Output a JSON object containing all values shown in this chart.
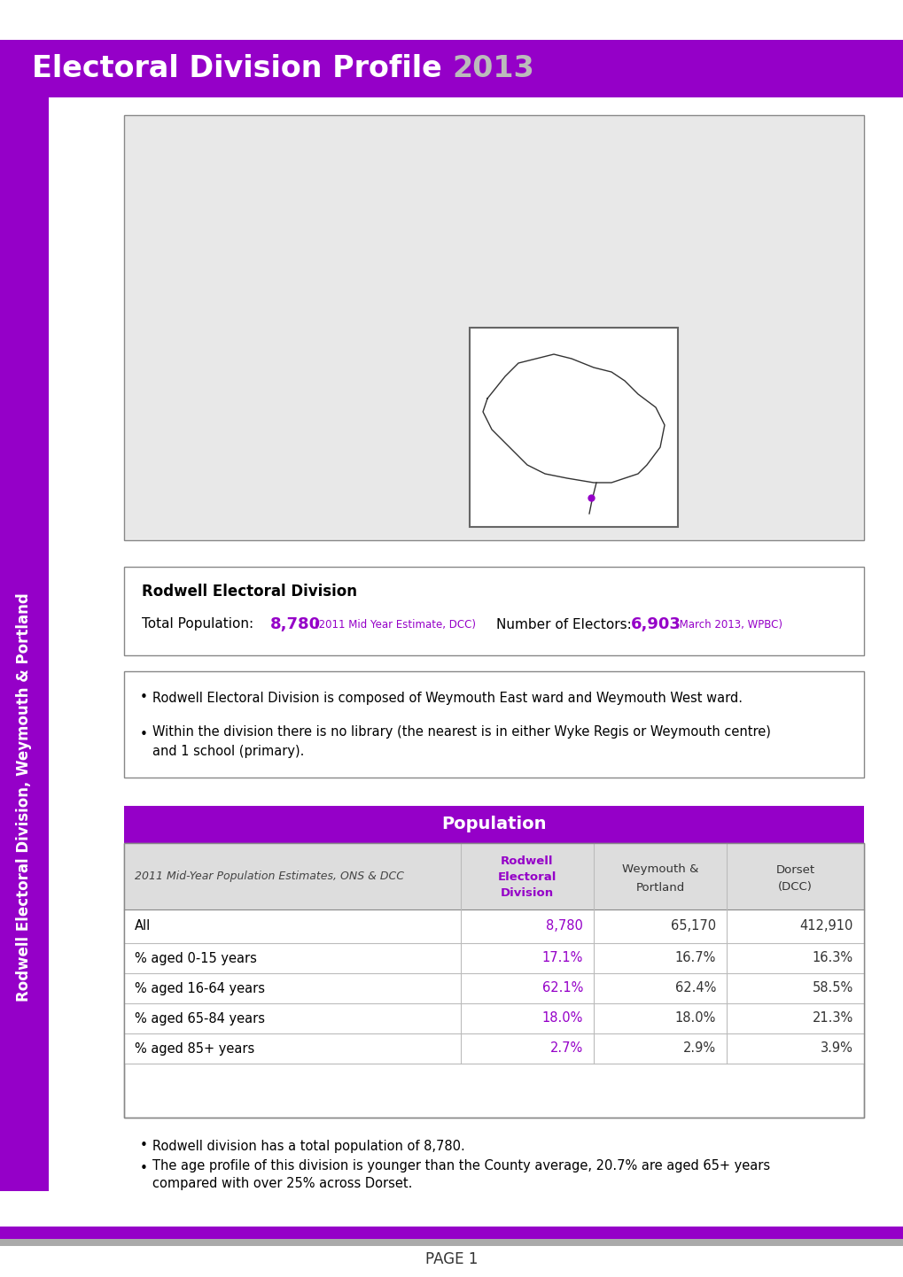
{
  "title_part1": "Electoral Division Profile ",
  "title_part2": "2013",
  "title_bg_color": "#9500C8",
  "title_text_color": "#FFFFFF",
  "title_year_color": "#BBBBBB",
  "sidebar_text": "Rodwell Electoral Division, Weymouth & Portland",
  "sidebar_bg_color": "#9500C8",
  "division_name": "Rodwell Electoral Division",
  "total_pop_label": "Total Population: ",
  "total_pop_value": "8,780",
  "total_pop_note": " (2011 Mid Year Estimate, DCC) ",
  "electors_label": "Number of Electors: ",
  "electors_value": "6,903",
  "electors_note": " (March 2013, WPBC)",
  "purple_color": "#9500C8",
  "bullet1": "Rodwell Electoral Division is composed of Weymouth East ward and Weymouth West ward.",
  "bullet2_line1": "Within the division there is no library (the nearest is in either Wyke Regis or Weymouth centre)",
  "bullet2_line2": "and 1 school (primary).",
  "pop_table_title": "Population",
  "pop_table_header_col1": "2011 Mid-Year Population Estimates, ONS & DCC",
  "pop_table_header_col2_line1": "Rodwell",
  "pop_table_header_col2_line2": "Electoral",
  "pop_table_header_col2_line3": "Division",
  "pop_table_header_col3_line1": "Weymouth &",
  "pop_table_header_col3_line2": "Portland",
  "pop_table_header_col4_line1": "Dorset",
  "pop_table_header_col4_line2": "(DCC)",
  "pop_rows": [
    [
      "All",
      "8,780",
      "65,170",
      "412,910"
    ],
    [
      "% aged 0-15 years",
      "17.1%",
      "16.7%",
      "16.3%"
    ],
    [
      "% aged 16-64 years",
      "62.1%",
      "62.4%",
      "58.5%"
    ],
    [
      "% aged 65-84 years",
      "18.0%",
      "18.0%",
      "21.3%"
    ],
    [
      "% aged 85+ years",
      "2.7%",
      "2.9%",
      "3.9%"
    ]
  ],
  "bullet3": "Rodwell division has a total population of 8,780.",
  "bullet4_line1": "The age profile of this division is younger than the County average, 20.7% are aged 65+ years",
  "bullet4_line2": "compared with over 25% across Dorset.",
  "page_text": "PAGE 1",
  "footer_bar_color1": "#9500C8",
  "footer_bar_color2": "#AAAAAA"
}
